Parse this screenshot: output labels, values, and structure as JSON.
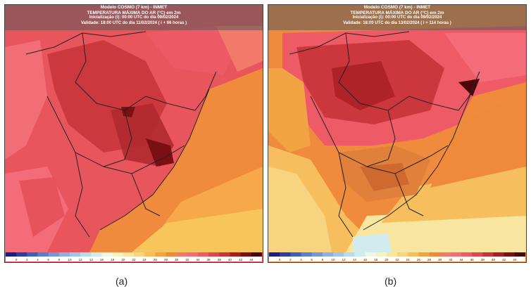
{
  "panels": [
    {
      "header": {
        "line1": "Modelo COSMO (7 km) - INMET",
        "line2": "TEMPERATURA MÁXIMA DO AR (°C) em 2m",
        "line3": "Inicialização (i): 00:00 UTC do dia 09/02/2024",
        "line4": "Validade: 18:00 UTC do dia 11/02/2024 ( i + 66 horas )"
      },
      "caption": "(a)"
    },
    {
      "header": {
        "line1": "Modelo COSMO (7 km) - INMET",
        "line2": "TEMPERATURA MÁXIMA DO AR (°C) em 2m",
        "line3": "Inicialização (i): 00:00 UTC do dia 09/02/2024",
        "line4": "Validade: 18:00 UTC do dia 13/02/2024 ( i + 114 horas )"
      },
      "caption": "(b)"
    }
  ],
  "colorbar": {
    "ticks": [
      "0",
      "2",
      "4",
      "6",
      "8",
      "10",
      "12",
      "14",
      "16",
      "18",
      "20",
      "22",
      "24",
      "26",
      "28",
      "30",
      "32",
      "34",
      "36",
      "38",
      "40",
      "42",
      "44"
    ],
    "colors": [
      "#1c1f8a",
      "#2a3ea6",
      "#3c5fc0",
      "#5a7fd0",
      "#7597d8",
      "#8fb0e0",
      "#9fc6e6",
      "#b8dcea",
      "#d0ecef",
      "#eef6e6",
      "#f6f2c0",
      "#f8e6a0",
      "#f8d480",
      "#f6be5c",
      "#f2a444",
      "#ee8a3a",
      "#f27a6a",
      "#f46c7a",
      "#ee5a66",
      "#e04850",
      "#c83238",
      "#a81e24",
      "#7a1014",
      "#4a0608"
    ]
  }
}
